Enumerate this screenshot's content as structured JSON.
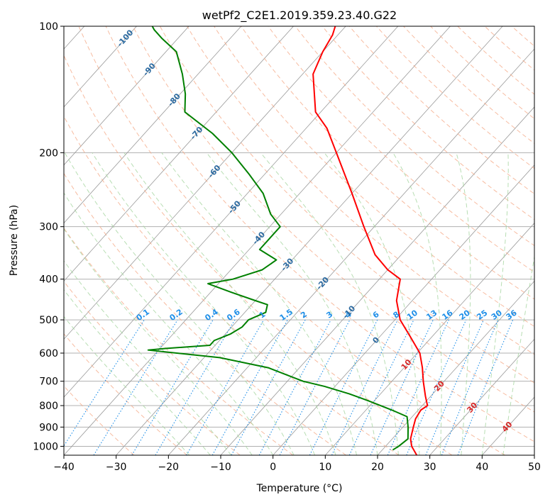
{
  "chart_data": {
    "type": "skewt",
    "title": "wetPf2_C2E1.2019.359.23.40.G22",
    "xlabel": "Temperature (°C)",
    "ylabel": "Pressure (hPa)",
    "xlim": [
      -40,
      50
    ],
    "ylim": [
      1050,
      100
    ],
    "y_scale": "log",
    "xticks": [
      "−40",
      "−30",
      "−20",
      "−10",
      "0",
      "10",
      "20",
      "30",
      "40",
      "50"
    ],
    "yticks": [
      {
        "p": 100,
        "label": "100"
      },
      {
        "p": 200,
        "label": "200"
      },
      {
        "p": 300,
        "label": "300"
      },
      {
        "p": 400,
        "label": "400"
      },
      {
        "p": 500,
        "label": "500"
      },
      {
        "p": 600,
        "label": "600"
      },
      {
        "p": 700,
        "label": "700"
      },
      {
        "p": 800,
        "label": "800"
      },
      {
        "p": 900,
        "label": "900"
      },
      {
        "p": 1000,
        "label": "1000"
      }
    ],
    "grid": true,
    "series": [
      {
        "color": "#ff0000",
        "points": [
          {
            "p": 1050,
            "t": 27.5
          },
          {
            "p": 1000,
            "t": 25
          },
          {
            "p": 960,
            "t": 23.5
          },
          {
            "p": 900,
            "t": 22
          },
          {
            "p": 860,
            "t": 21
          },
          {
            "p": 820,
            "t": 20.5
          },
          {
            "p": 800,
            "t": 21
          },
          {
            "p": 760,
            "t": 19
          },
          {
            "p": 700,
            "t": 16
          },
          {
            "p": 650,
            "t": 13.5
          },
          {
            "p": 600,
            "t": 10.5
          },
          {
            "p": 550,
            "t": 6
          },
          {
            "p": 500,
            "t": 1
          },
          {
            "p": 450,
            "t": -3
          },
          {
            "p": 400,
            "t": -6
          },
          {
            "p": 380,
            "t": -10
          },
          {
            "p": 350,
            "t": -15
          },
          {
            "p": 300,
            "t": -22
          },
          {
            "p": 250,
            "t": -30
          },
          {
            "p": 200,
            "t": -40
          },
          {
            "p": 175,
            "t": -46
          },
          {
            "p": 160,
            "t": -51
          },
          {
            "p": 130,
            "t": -58
          },
          {
            "p": 115,
            "t": -60
          },
          {
            "p": 105,
            "t": -61
          },
          {
            "p": 100,
            "t": -62
          }
        ]
      },
      {
        "color": "#008000",
        "points": [
          {
            "p": 1020,
            "t": 22
          },
          {
            "p": 1000,
            "t": 22.5
          },
          {
            "p": 960,
            "t": 23
          },
          {
            "p": 900,
            "t": 21
          },
          {
            "p": 850,
            "t": 19
          },
          {
            "p": 820,
            "t": 15
          },
          {
            "p": 780,
            "t": 9
          },
          {
            "p": 750,
            "t": 4
          },
          {
            "p": 720,
            "t": -2
          },
          {
            "p": 700,
            "t": -7
          },
          {
            "p": 650,
            "t": -16
          },
          {
            "p": 615,
            "t": -27
          },
          {
            "p": 590,
            "t": -42
          },
          {
            "p": 585,
            "t": -39
          },
          {
            "p": 575,
            "t": -31
          },
          {
            "p": 560,
            "t": -31
          },
          {
            "p": 540,
            "t": -29
          },
          {
            "p": 520,
            "t": -28
          },
          {
            "p": 500,
            "t": -28
          },
          {
            "p": 480,
            "t": -26
          },
          {
            "p": 460,
            "t": -27
          },
          {
            "p": 450,
            "t": -30
          },
          {
            "p": 430,
            "t": -36
          },
          {
            "p": 410,
            "t": -42
          },
          {
            "p": 400,
            "t": -38
          },
          {
            "p": 380,
            "t": -34
          },
          {
            "p": 360,
            "t": -33
          },
          {
            "p": 340,
            "t": -38
          },
          {
            "p": 320,
            "t": -38
          },
          {
            "p": 300,
            "t": -38
          },
          {
            "p": 280,
            "t": -42
          },
          {
            "p": 250,
            "t": -47
          },
          {
            "p": 225,
            "t": -53
          },
          {
            "p": 200,
            "t": -60
          },
          {
            "p": 180,
            "t": -67
          },
          {
            "p": 160,
            "t": -76
          },
          {
            "p": 145,
            "t": -79
          },
          {
            "p": 130,
            "t": -83
          },
          {
            "p": 115,
            "t": -88
          },
          {
            "p": 107,
            "t": -93
          },
          {
            "p": 102,
            "t": -96
          },
          {
            "p": 100,
            "t": -97
          }
        ]
      }
    ],
    "dry_adiabat_labels": [
      "-100",
      "-90",
      "-80",
      "-70",
      "-60",
      "-50",
      "-40",
      "-30",
      "-20",
      "-10",
      "0",
      "10",
      "20",
      "30",
      "40"
    ],
    "mixing_ratio_labels": [
      "0.1",
      "0.2",
      "0.4",
      "0.6",
      "1",
      "1.5",
      "2",
      "3",
      "4",
      "6",
      "8",
      "10",
      "13",
      "16",
      "20",
      "25",
      "30",
      "36"
    ],
    "colors": {
      "temperature": "#ff0000",
      "dewpoint": "#008000",
      "dry_adiabat": "#f4a582",
      "moist_adiabat": "#a6d6a0",
      "mixing_ratio": "#1f8fe8",
      "skewed_isotherm": "#9a9a9a",
      "dry_label_cold": "#2c6aa0",
      "dry_label_warm": "#d62728"
    }
  }
}
